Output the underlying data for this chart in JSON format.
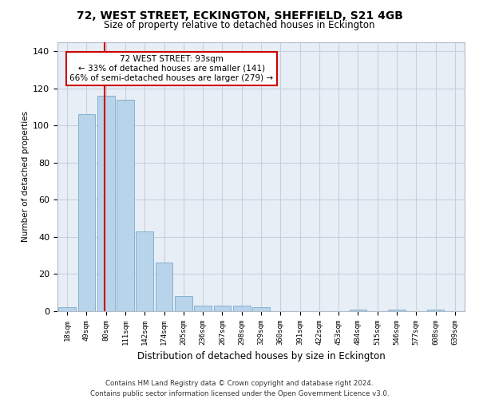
{
  "title": "72, WEST STREET, ECKINGTON, SHEFFIELD, S21 4GB",
  "subtitle": "Size of property relative to detached houses in Eckington",
  "xlabel": "Distribution of detached houses by size in Eckington",
  "ylabel": "Number of detached properties",
  "bar_color": "#b8d4ea",
  "bar_edge_color": "#7aaac8",
  "grid_color": "#c8d0dc",
  "bg_color": "#e8eef6",
  "categories": [
    "18sqm",
    "49sqm",
    "80sqm",
    "111sqm",
    "142sqm",
    "174sqm",
    "205sqm",
    "236sqm",
    "267sqm",
    "298sqm",
    "329sqm",
    "360sqm",
    "391sqm",
    "422sqm",
    "453sqm",
    "484sqm",
    "515sqm",
    "546sqm",
    "577sqm",
    "608sqm",
    "639sqm"
  ],
  "values": [
    2,
    106,
    116,
    114,
    43,
    26,
    8,
    3,
    3,
    3,
    2,
    0,
    0,
    0,
    0,
    1,
    0,
    1,
    0,
    1,
    0
  ],
  "annotation_text": "72 WEST STREET: 93sqm\n← 33% of detached houses are smaller (141)\n66% of semi-detached houses are larger (279) →",
  "annotation_box_color": "#ffffff",
  "annotation_box_edge_color": "#cc0000",
  "marker_line_color": "#cc0000",
  "ylim": [
    0,
    145
  ],
  "yticks": [
    0,
    20,
    40,
    60,
    80,
    100,
    120,
    140
  ],
  "footer_line1": "Contains HM Land Registry data © Crown copyright and database right 2024.",
  "footer_line2": "Contains public sector information licensed under the Open Government Licence v3.0."
}
